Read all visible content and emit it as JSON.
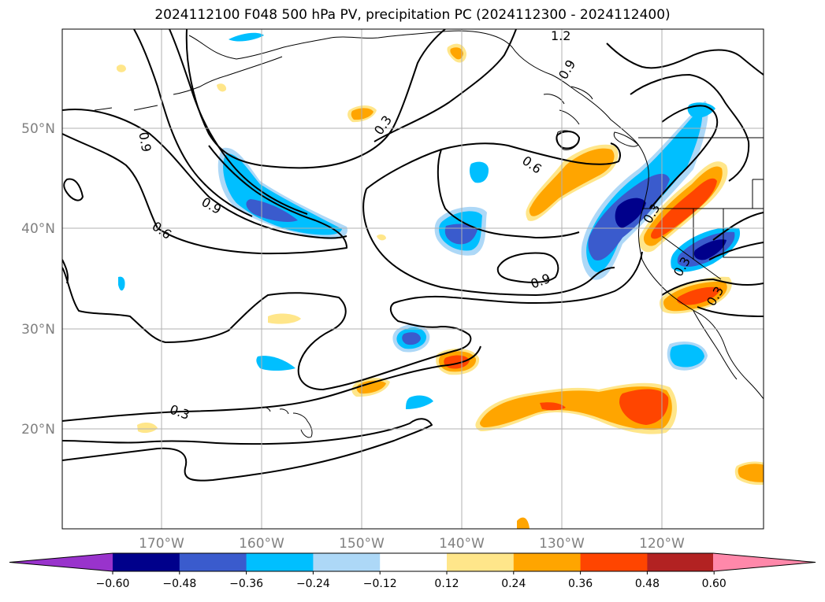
{
  "title": "2024112100 F048 500 hPa PV, precipitation PC (2024112300 - 2024112400)",
  "map": {
    "lat_labels": [
      "50°N",
      "40°N",
      "30°N",
      "20°N"
    ],
    "lon_labels": [
      "170°W",
      "160°W",
      "150°W",
      "140°W",
      "130°W",
      "120°W"
    ],
    "contour_labels": [
      "0.9",
      "0.6",
      "0.9",
      "0.3",
      "0.6",
      "0.9",
      "0.3",
      "0.3",
      "0.3",
      "0.9",
      "1.2",
      "0.3"
    ]
  },
  "colorbar": {
    "ticks": [
      "−0.60",
      "−0.48",
      "−0.36",
      "−0.24",
      "−0.12",
      "0.12",
      "0.24",
      "0.36",
      "0.48",
      "0.60"
    ],
    "colors": [
      "#9933cc",
      "#00008b",
      "#3a5bcd",
      "#00bfff",
      "#add8f7",
      "#ffffff",
      "#ffe68a",
      "#ffa500",
      "#ff4500",
      "#b22222",
      "#ff88aa"
    ]
  },
  "colors": {
    "pos1": "#ffe68a",
    "pos2": "#ffa500",
    "pos3": "#ff4500",
    "neg1": "#add8f7",
    "neg2": "#00bfff",
    "neg3": "#3a5bcd",
    "neg4": "#00008b"
  }
}
